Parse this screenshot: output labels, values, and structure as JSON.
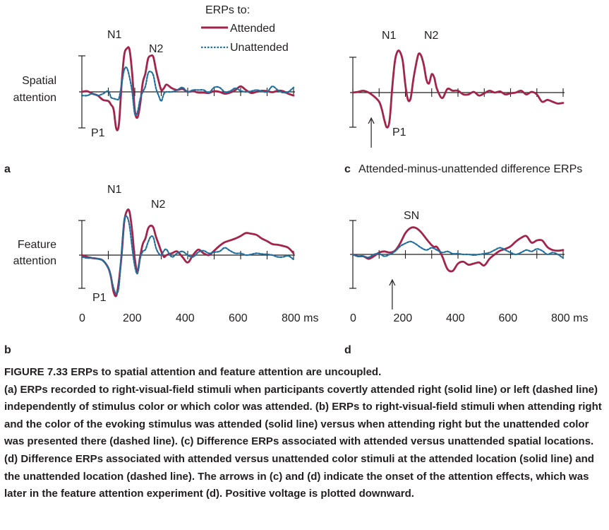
{
  "legend": {
    "title": "ERPs to:",
    "attended": "Attended",
    "unattended": "Unattended",
    "colors": {
      "attended": "#a3244a",
      "unattended": "#1f6f9e"
    }
  },
  "row_labels": {
    "spatial": [
      "Spatial",
      "attention"
    ],
    "feature": [
      "Feature",
      "attention"
    ]
  },
  "panel_letters": {
    "a": "a",
    "b": "b",
    "c": "c",
    "d": "d"
  },
  "panel_c_title": "Attended-minus-unattended difference ERPs",
  "peak_labels": {
    "n1": "N1",
    "n2": "N2",
    "p1": "P1",
    "sn": "SN"
  },
  "chart_data": [
    {
      "panel": "a",
      "type": "line",
      "xlabel": "ms",
      "xlim": [
        0,
        800
      ],
      "x_ticks": [
        0,
        100,
        200,
        300,
        400,
        500,
        600,
        700,
        800
      ],
      "series": [
        {
          "name": "Attended",
          "x": [
            0,
            20,
            40,
            60,
            80,
            100,
            110,
            120,
            130,
            140,
            150,
            160,
            170,
            180,
            190,
            200,
            210,
            220,
            230,
            240,
            250,
            260,
            270,
            280,
            290,
            300,
            310,
            320,
            340,
            360,
            380,
            400,
            420,
            440,
            460,
            480,
            500,
            520,
            540,
            560,
            580,
            600,
            620,
            640,
            660,
            680,
            700,
            720,
            740,
            760,
            780,
            800
          ],
          "y": [
            0,
            0.02,
            -0.05,
            -0.1,
            -0.22,
            -0.25,
            -0.35,
            -0.48,
            -1.0,
            -0.88,
            0.2,
            1.0,
            1.18,
            1.15,
            0.5,
            -0.5,
            -0.7,
            -0.35,
            0.25,
            0.5,
            0.9,
            0.98,
            0.95,
            0.6,
            0.3,
            0.05,
            0.1,
            0.2,
            0.1,
            0.05,
            0.08,
            0.0,
            0.02,
            -0.02,
            -0.02,
            -0.03,
            0.02,
            0.0,
            -0.05,
            -0.02,
            0.05,
            0.15,
            0.05,
            -0.03,
            0.0,
            0.03,
            0.02,
            -0.01,
            0.03,
            0.02,
            -0.05,
            -0.1
          ]
        },
        {
          "name": "Unattended",
          "x": [
            0,
            20,
            40,
            60,
            80,
            100,
            110,
            120,
            130,
            140,
            150,
            160,
            170,
            180,
            190,
            200,
            210,
            220,
            230,
            240,
            250,
            260,
            270,
            280,
            290,
            300,
            310,
            320,
            340,
            360,
            380,
            400,
            420,
            440,
            460,
            480,
            500,
            520,
            540,
            560,
            580,
            600,
            620,
            640,
            660,
            680,
            700,
            720,
            740,
            760,
            780,
            800
          ],
          "y": [
            -0.1,
            -0.1,
            -0.05,
            -0.1,
            -0.05,
            0.02,
            -0.15,
            -0.18,
            -0.2,
            -0.18,
            0.2,
            0.6,
            0.65,
            0.4,
            0.0,
            -0.6,
            -0.55,
            -0.2,
            0.0,
            0.15,
            0.5,
            0.55,
            0.45,
            0.1,
            -0.1,
            -0.25,
            -0.05,
            0.0,
            0.0,
            0.05,
            0.12,
            0.0,
            0.05,
            0.05,
            0.05,
            -0.02,
            0.12,
            0.12,
            0.0,
            0.02,
            0.1,
            0.03,
            0.0,
            0.02,
            0.05,
            0.02,
            0.0,
            0.15,
            0.05,
            -0.02,
            0.0,
            0.12
          ]
        }
      ]
    },
    {
      "panel": "b",
      "type": "line",
      "xlabel": "ms",
      "xlim": [
        0,
        800
      ],
      "x_ticks": [
        0,
        100,
        200,
        300,
        400,
        500,
        600,
        700,
        800
      ],
      "x_tick_labels": [
        "0",
        "200",
        "400",
        "600",
        "800 ms"
      ],
      "series": [
        {
          "name": "Attended",
          "x": [
            0,
            20,
            40,
            60,
            80,
            100,
            110,
            120,
            130,
            140,
            150,
            160,
            170,
            180,
            190,
            200,
            210,
            220,
            230,
            240,
            250,
            260,
            270,
            280,
            290,
            300,
            310,
            320,
            340,
            360,
            380,
            400,
            420,
            440,
            460,
            480,
            500,
            520,
            540,
            560,
            580,
            600,
            620,
            640,
            660,
            680,
            700,
            720,
            740,
            760,
            780,
            800
          ],
          "y": [
            0,
            -0.05,
            -0.08,
            -0.1,
            -0.15,
            -0.35,
            -0.6,
            -1.0,
            -1.1,
            -0.7,
            0.0,
            0.9,
            1.2,
            1.18,
            0.65,
            -0.1,
            -0.45,
            -0.05,
            0.3,
            0.45,
            0.72,
            0.8,
            0.75,
            0.5,
            0.3,
            0.1,
            -0.05,
            0.0,
            0.05,
            0.1,
            -0.05,
            -0.2,
            0.0,
            0.15,
            0.05,
            0.0,
            0.12,
            0.25,
            0.35,
            0.4,
            0.45,
            0.52,
            0.6,
            0.58,
            0.55,
            0.45,
            0.38,
            0.3,
            0.28,
            0.25,
            0.2,
            0.05
          ]
        },
        {
          "name": "Unattended",
          "x": [
            0,
            20,
            40,
            60,
            80,
            100,
            110,
            120,
            130,
            140,
            150,
            160,
            170,
            180,
            190,
            200,
            210,
            220,
            230,
            240,
            250,
            260,
            270,
            280,
            290,
            300,
            310,
            320,
            340,
            360,
            380,
            400,
            420,
            440,
            460,
            480,
            500,
            520,
            540,
            560,
            580,
            600,
            620,
            640,
            660,
            680,
            700,
            720,
            740,
            760,
            780,
            800
          ],
          "y": [
            -0.05,
            -0.08,
            -0.08,
            -0.1,
            -0.15,
            -0.35,
            -0.6,
            -0.9,
            -1.05,
            -0.85,
            0.1,
            0.95,
            1.05,
            0.8,
            0.2,
            -0.3,
            -0.5,
            -0.1,
            0.1,
            0.15,
            0.35,
            0.5,
            0.48,
            0.2,
            0.05,
            0.0,
            0.12,
            0.15,
            -0.05,
            0.05,
            0.1,
            0.0,
            -0.05,
            0.08,
            0.12,
            0.05,
            0.08,
            0.1,
            0.2,
            0.12,
            0.05,
            0.05,
            0.0,
            0.02,
            0.05,
            0.03,
            0.02,
            0.0,
            -0.05,
            -0.05,
            -0.02,
            -0.12
          ]
        }
      ]
    },
    {
      "panel": "c",
      "type": "line",
      "xlabel": "ms",
      "xlim": [
        0,
        800
      ],
      "x_ticks": [
        0,
        100,
        200,
        300,
        400,
        500,
        600,
        700,
        800
      ],
      "arrow_ms": 70,
      "series": [
        {
          "name": "Attended-minus-unattended",
          "x": [
            0,
            20,
            40,
            60,
            80,
            100,
            110,
            120,
            130,
            140,
            150,
            160,
            170,
            180,
            190,
            200,
            210,
            220,
            230,
            240,
            250,
            260,
            270,
            280,
            290,
            300,
            310,
            320,
            340,
            360,
            380,
            400,
            420,
            440,
            460,
            480,
            500,
            520,
            540,
            560,
            580,
            600,
            620,
            640,
            660,
            680,
            700,
            720,
            740,
            760,
            780,
            800
          ],
          "y": [
            0,
            0.02,
            0.05,
            0.0,
            -0.1,
            -0.25,
            -0.45,
            -0.75,
            -0.95,
            -0.75,
            0.15,
            0.85,
            1.12,
            1.1,
            0.85,
            0.2,
            -0.2,
            -0.15,
            0.35,
            0.75,
            1.05,
            1.0,
            0.75,
            0.35,
            0.25,
            0.5,
            0.4,
            0.1,
            -0.15,
            0.1,
            0.05,
            0.05,
            -0.05,
            -0.05,
            0.02,
            -0.08,
            -0.02,
            0.05,
            0.0,
            0.03,
            -0.05,
            -0.02,
            0.0,
            0.05,
            -0.05,
            0.02,
            -0.05,
            -0.25,
            -0.2,
            -0.25,
            -0.3,
            -0.28
          ]
        }
      ]
    },
    {
      "panel": "d",
      "type": "line",
      "xlabel": "ms",
      "xlim": [
        0,
        800
      ],
      "x_ticks": [
        0,
        100,
        200,
        300,
        400,
        500,
        600,
        700,
        800
      ],
      "x_tick_labels": [
        "0",
        "200",
        "400",
        "600",
        "800 ms"
      ],
      "arrow_ms": 150,
      "series": [
        {
          "name": "Attended",
          "x": [
            0,
            20,
            40,
            60,
            80,
            100,
            120,
            140,
            160,
            180,
            200,
            220,
            240,
            260,
            280,
            300,
            310,
            320,
            340,
            360,
            380,
            400,
            420,
            440,
            460,
            480,
            500,
            520,
            540,
            560,
            580,
            600,
            620,
            640,
            660,
            680,
            700,
            720,
            740,
            760,
            780,
            800
          ],
          "y": [
            0,
            -0.05,
            -0.05,
            -0.12,
            -0.05,
            0.05,
            0.08,
            0.05,
            0.1,
            0.3,
            0.58,
            0.72,
            0.72,
            0.6,
            0.42,
            0.25,
            0.2,
            0.2,
            -0.05,
            -0.4,
            -0.45,
            -0.25,
            -0.2,
            -0.28,
            -0.25,
            -0.22,
            -0.3,
            -0.12,
            0.0,
            0.1,
            0.15,
            0.22,
            0.35,
            0.45,
            0.5,
            0.32,
            0.38,
            0.38,
            0.2,
            0.12,
            0.1,
            0.12
          ]
        },
        {
          "name": "Unattended",
          "x": [
            0,
            20,
            40,
            60,
            80,
            100,
            120,
            140,
            160,
            180,
            200,
            220,
            240,
            260,
            280,
            300,
            320,
            340,
            360,
            380,
            400,
            420,
            440,
            460,
            480,
            500,
            520,
            540,
            560,
            580,
            600,
            620,
            640,
            660,
            680,
            700,
            720,
            740,
            760,
            780,
            800
          ],
          "y": [
            0,
            -0.05,
            -0.05,
            -0.08,
            0.0,
            0.02,
            -0.05,
            0.0,
            0.08,
            0.22,
            0.3,
            0.35,
            0.28,
            0.18,
            0.12,
            0.18,
            0.12,
            0.05,
            0.08,
            0.02,
            0.02,
            0.0,
            0.0,
            -0.02,
            0.0,
            0.02,
            0.05,
            0.12,
            0.18,
            0.12,
            0.05,
            0.0,
            0.05,
            0.12,
            0.08,
            0.15,
            0.1,
            0.0,
            0.05,
            0.0,
            -0.1
          ]
        }
      ]
    }
  ],
  "caption": {
    "title": "FIGURE 7.33 ERPs to spatial attention and feature attention are uncoupled.",
    "text": "(a) ERPs recorded to right-visual-field stimuli when participants covertly attended right (solid line) or left (dashed line) independently of stimulus color or which color was attended. (b) ERPs to right-visual-field stimuli when attending right and the color of the evoking stimulus was attended (solid line) versus when attending right but the unattended color was presented there (dashed line). (c) Difference ERPs associated with attended versus unattended spatial locations. (d) Difference ERPs associated with attended versus unattended color stimuli at the attended location (solid line) and the unattended location (dashed line). The arrows in (c) and (d) indicate the onset of the attention effects, which was later in the feature attention experiment (d). Positive voltage is plotted downward."
  }
}
